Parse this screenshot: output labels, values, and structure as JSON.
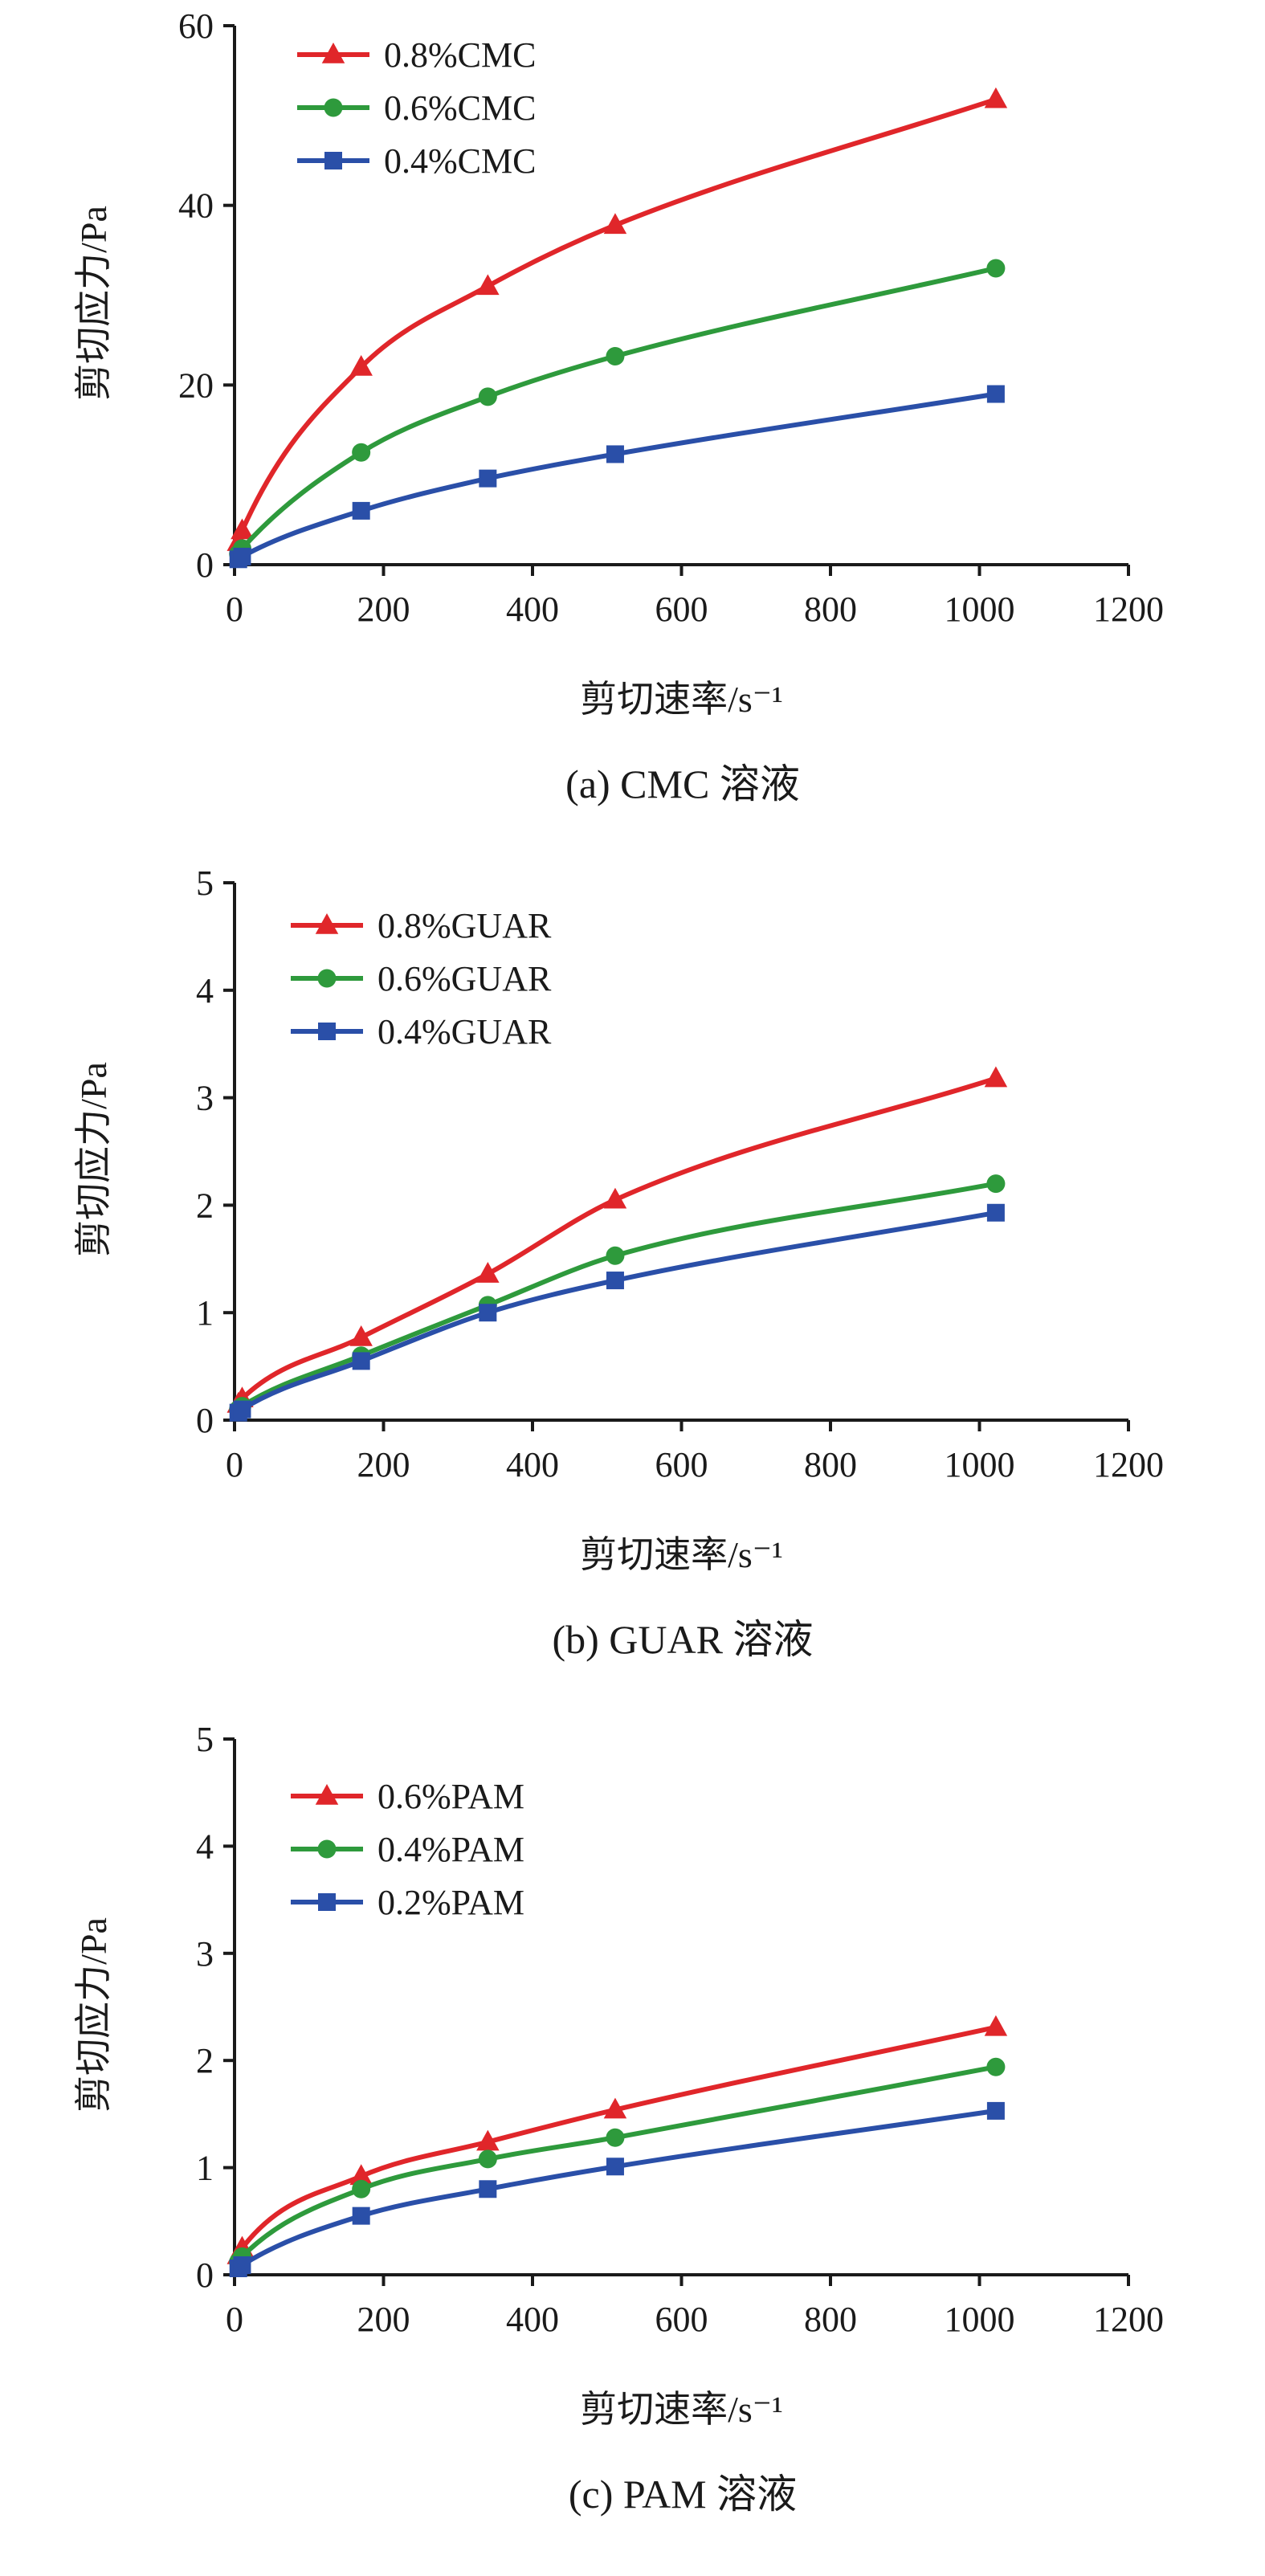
{
  "chart_data": [
    {
      "type": "line",
      "caption": "(a) CMC 溶液",
      "xlabel": "剪切速率/s⁻¹",
      "ylabel": "剪切应力/Pa",
      "xlim": [
        0,
        1200
      ],
      "ylim": [
        0,
        60
      ],
      "xticks": [
        "0",
        "200",
        "400",
        "600",
        "800",
        "1000",
        "1200"
      ],
      "yticks": [
        "0",
        "20",
        "40",
        "60"
      ],
      "legend_position": "top-left",
      "x": [
        5.1,
        10.2,
        170,
        340,
        511,
        1022
      ],
      "series": [
        {
          "name": "0.8%CMC",
          "marker": "triangle",
          "color": "#e0262a",
          "values": [
            2.5,
            3.8,
            22,
            31,
            37.8,
            51.8
          ]
        },
        {
          "name": "0.6%CMC",
          "marker": "circle",
          "color": "#2e9a3c",
          "values": [
            1.2,
            1.8,
            12.5,
            18.7,
            23.2,
            33
          ]
        },
        {
          "name": "0.4%CMC",
          "marker": "square",
          "color": "#2a4fa8",
          "values": [
            0.6,
            0.9,
            6,
            9.6,
            12.3,
            19
          ]
        }
      ]
    },
    {
      "type": "line",
      "caption": "(b) GUAR 溶液",
      "xlabel": "剪切速率/s⁻¹",
      "ylabel": "剪切应力/Pa",
      "xlim": [
        0,
        1200
      ],
      "ylim": [
        0,
        5
      ],
      "xticks": [
        "0",
        "200",
        "400",
        "600",
        "800",
        "1000",
        "1200"
      ],
      "yticks": [
        "0",
        "1",
        "2",
        "3",
        "4",
        "5"
      ],
      "legend_position": "top-left",
      "x": [
        5.1,
        10.2,
        170,
        340,
        511,
        1022
      ],
      "series": [
        {
          "name": "0.8%GUAR",
          "marker": "triangle",
          "color": "#e0262a",
          "values": [
            0.15,
            0.2,
            0.77,
            1.36,
            2.05,
            3.18
          ]
        },
        {
          "name": "0.6%GUAR",
          "marker": "circle",
          "color": "#2e9a3c",
          "values": [
            0.1,
            0.13,
            0.6,
            1.07,
            1.53,
            2.2
          ]
        },
        {
          "name": "0.4%GUAR",
          "marker": "square",
          "color": "#2a4fa8",
          "values": [
            0.07,
            0.1,
            0.55,
            1.0,
            1.3,
            1.93
          ]
        }
      ]
    },
    {
      "type": "line",
      "caption": "(c) PAM 溶液",
      "xlabel": "剪切速率/s⁻¹",
      "ylabel": "剪切应力/Pa",
      "xlim": [
        0,
        1200
      ],
      "ylim": [
        0,
        5
      ],
      "xticks": [
        "0",
        "200",
        "400",
        "600",
        "800",
        "1000",
        "1200"
      ],
      "yticks": [
        "0",
        "1",
        "2",
        "3",
        "4",
        "5"
      ],
      "legend_position": "top-left",
      "x": [
        5.1,
        10.2,
        170,
        340,
        511,
        1022
      ],
      "series": [
        {
          "name": "0.6%PAM",
          "marker": "triangle",
          "color": "#e0262a",
          "values": [
            0.18,
            0.25,
            0.92,
            1.24,
            1.54,
            2.31
          ]
        },
        {
          "name": "0.4%PAM",
          "marker": "circle",
          "color": "#2e9a3c",
          "values": [
            0.12,
            0.17,
            0.8,
            1.08,
            1.28,
            1.94
          ]
        },
        {
          "name": "0.2%PAM",
          "marker": "square",
          "color": "#2a4fa8",
          "values": [
            0.06,
            0.09,
            0.55,
            0.8,
            1.01,
            1.53
          ]
        }
      ]
    }
  ]
}
